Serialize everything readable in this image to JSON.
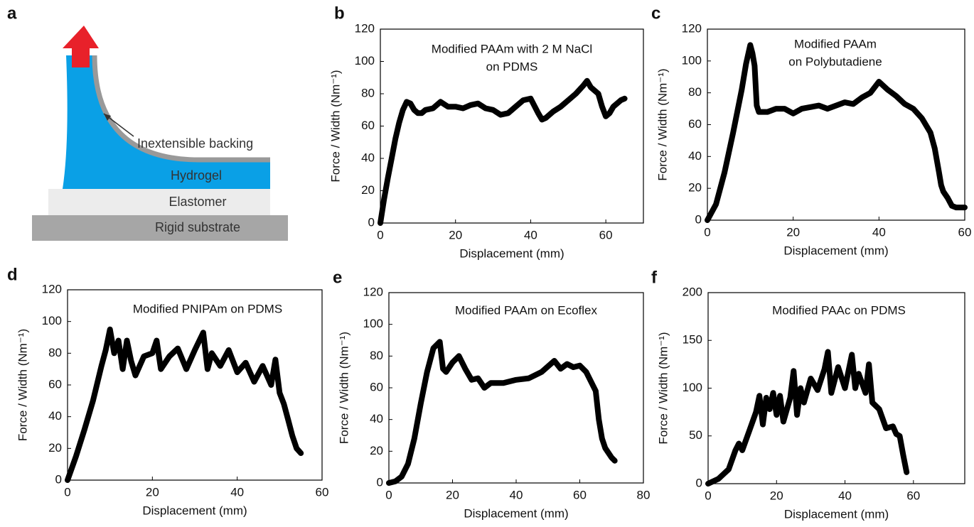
{
  "diagram": {
    "panel": "a",
    "labels": [
      "Inextensible backing",
      "Hydrogel",
      "Elastomer",
      "Rigid substrate"
    ]
  },
  "chart_data": [
    {
      "type": "line",
      "panel": "b",
      "title": [
        "Modified PAAm with 2 M NaCl",
        "on PDMS"
      ],
      "xlabel": "Displacement (mm)",
      "ylabel": "Force / Width (Nm⁻¹)",
      "color": "#000000",
      "x": [
        0,
        1,
        2,
        3,
        4,
        5,
        6,
        7,
        8,
        9,
        10,
        11,
        12,
        14,
        16,
        18,
        20,
        22,
        24,
        26,
        28,
        30,
        32,
        34,
        36,
        38,
        40,
        42,
        43,
        44,
        46,
        48,
        50,
        52,
        54,
        55,
        56,
        58,
        59,
        60,
        61,
        62,
        64,
        65
      ],
      "values": [
        0,
        15,
        28,
        40,
        52,
        62,
        70,
        75,
        74,
        70,
        68,
        68,
        70,
        71,
        75,
        72,
        72,
        71,
        73,
        74,
        71,
        70,
        67,
        68,
        72,
        76,
        77,
        68,
        64,
        65,
        69,
        72,
        76,
        80,
        85,
        88,
        84,
        80,
        72,
        66,
        68,
        72,
        76,
        77
      ],
      "xlim": [
        0,
        70
      ],
      "ylim": [
        0,
        120
      ],
      "xticks": [
        0,
        20,
        40,
        60
      ],
      "yticks": [
        0,
        20,
        40,
        60,
        80,
        100,
        120
      ]
    },
    {
      "type": "line",
      "panel": "c",
      "title": [
        "Modified PAAm",
        "on Polybutadiene"
      ],
      "xlabel": "Displacement (mm)",
      "ylabel": "Force / Width (Nm⁻¹)",
      "color": "#000000",
      "x": [
        0,
        2,
        4,
        6,
        8,
        9,
        10,
        10.5,
        11,
        11.5,
        12,
        14,
        16,
        18,
        20,
        22,
        24,
        26,
        28,
        30,
        32,
        34,
        36,
        38,
        40,
        42,
        44,
        46,
        48,
        50,
        52,
        53,
        54,
        54.5,
        55,
        56,
        57,
        58,
        59,
        60
      ],
      "values": [
        0,
        10,
        30,
        55,
        82,
        98,
        110,
        105,
        97,
        72,
        68,
        68,
        70,
        70,
        67,
        70,
        71,
        72,
        70,
        72,
        74,
        73,
        77,
        80,
        87,
        82,
        78,
        73,
        70,
        64,
        55,
        45,
        30,
        22,
        18,
        14,
        9,
        8,
        8,
        8
      ],
      "xlim": [
        0,
        60
      ],
      "ylim": [
        0,
        120
      ],
      "xticks": [
        0,
        20,
        40,
        60
      ],
      "yticks": [
        0,
        20,
        40,
        60,
        80,
        100,
        120
      ]
    },
    {
      "type": "line",
      "panel": "d",
      "title": [
        "Modified PNIPAm on PDMS"
      ],
      "xlabel": "Displacement (mm)",
      "ylabel": "Force / Width (Nm⁻¹)",
      "color": "#000000",
      "x": [
        0,
        2,
        4,
        6,
        8,
        9,
        10,
        11,
        12,
        13,
        14,
        15,
        16,
        18,
        20,
        21,
        22,
        24,
        26,
        28,
        30,
        32,
        33,
        34,
        36,
        38,
        40,
        42,
        44,
        46,
        48,
        49,
        50,
        51,
        52,
        53,
        54,
        55
      ],
      "values": [
        0,
        15,
        32,
        50,
        72,
        82,
        95,
        80,
        88,
        70,
        88,
        75,
        66,
        78,
        80,
        88,
        70,
        78,
        83,
        70,
        82,
        93,
        70,
        80,
        72,
        82,
        68,
        74,
        62,
        72,
        60,
        76,
        55,
        48,
        38,
        28,
        20,
        17
      ],
      "xlim": [
        0,
        60
      ],
      "ylim": [
        0,
        120
      ],
      "xticks": [
        0,
        20,
        40,
        60
      ],
      "yticks": [
        0,
        20,
        40,
        60,
        80,
        100,
        120
      ]
    },
    {
      "type": "line",
      "panel": "e",
      "title": [
        "Modified PAAm on Ecoflex"
      ],
      "xlabel": "Displacement (mm)",
      "ylabel": "Force / Width (Nm⁻¹)",
      "color": "#000000",
      "x": [
        0,
        2,
        4,
        6,
        8,
        10,
        12,
        14,
        15,
        16,
        17,
        18,
        20,
        22,
        24,
        26,
        28,
        30,
        32,
        36,
        40,
        44,
        48,
        52,
        54,
        56,
        58,
        60,
        62,
        64,
        65,
        66,
        67,
        68,
        70,
        71
      ],
      "values": [
        0,
        1,
        4,
        12,
        28,
        50,
        70,
        85,
        87,
        89,
        72,
        70,
        76,
        80,
        72,
        65,
        66,
        60,
        63,
        63,
        65,
        66,
        70,
        77,
        72,
        75,
        73,
        74,
        70,
        62,
        58,
        40,
        28,
        22,
        16,
        14
      ],
      "xlim": [
        0,
        80
      ],
      "ylim": [
        0,
        120
      ],
      "xticks": [
        0,
        20,
        40,
        60,
        80
      ],
      "yticks": [
        0,
        20,
        40,
        60,
        80,
        100,
        120
      ]
    },
    {
      "type": "line",
      "panel": "f",
      "title": [
        "Modified PAAc on PDMS"
      ],
      "xlabel": "Displacement (mm)",
      "ylabel": "Force / Width (Nm⁻¹)",
      "color": "#000000",
      "x": [
        0,
        3,
        6,
        8,
        9,
        10,
        12,
        14,
        15,
        16,
        17,
        18,
        19,
        20,
        21,
        22,
        24,
        25,
        26,
        27,
        28,
        30,
        32,
        34,
        35,
        36,
        38,
        40,
        42,
        43,
        44,
        46,
        47,
        48,
        50,
        52,
        54,
        55,
        56,
        57,
        58
      ],
      "values": [
        0,
        5,
        15,
        35,
        42,
        35,
        55,
        75,
        92,
        62,
        90,
        78,
        95,
        72,
        92,
        65,
        90,
        118,
        72,
        100,
        85,
        110,
        98,
        120,
        138,
        95,
        122,
        100,
        135,
        100,
        115,
        95,
        125,
        85,
        78,
        58,
        60,
        52,
        50,
        30,
        12
      ],
      "xlim": [
        0,
        75
      ],
      "ylim": [
        0,
        200
      ],
      "xticks": [
        0,
        20,
        40,
        60
      ],
      "yticks": [
        0,
        50,
        100,
        150,
        200
      ]
    }
  ]
}
